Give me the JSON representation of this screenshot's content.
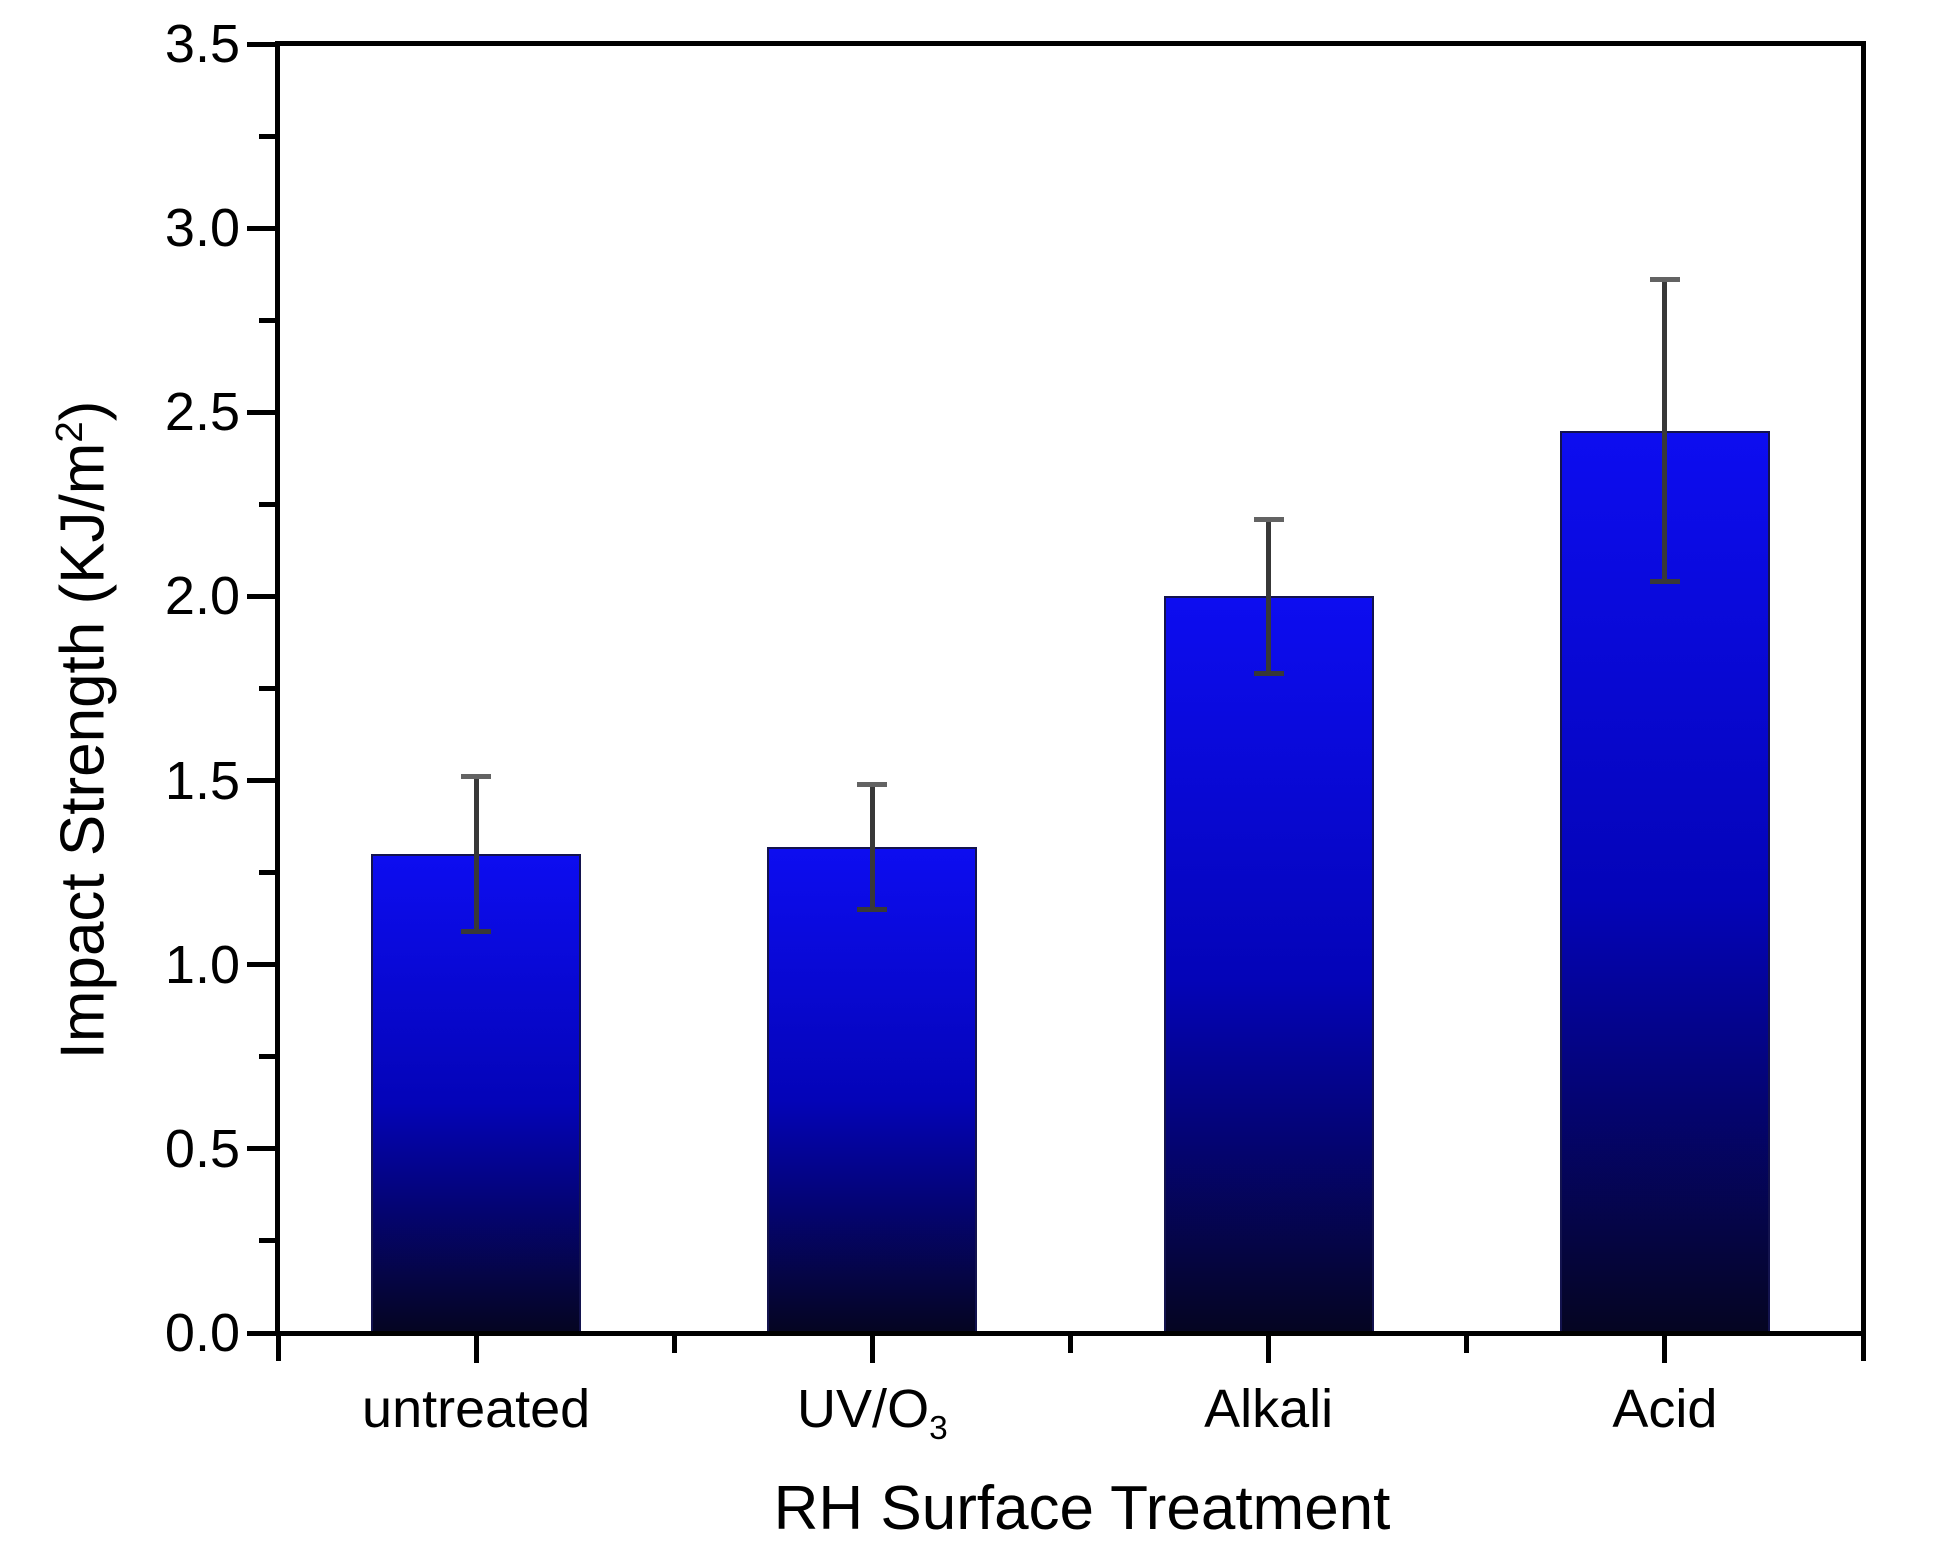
{
  "chart_data": {
    "type": "bar",
    "title": "",
    "xlabel": "RH Surface Treatment",
    "ylabel": {
      "prefix": "Impact Strength (KJ/m",
      "sup": "2",
      "suffix": ")"
    },
    "categories": [
      {
        "label": "untreated",
        "sub": ""
      },
      {
        "label": "UV/O",
        "sub": "3"
      },
      {
        "label": "Alkali",
        "sub": ""
      },
      {
        "label": "Acid",
        "sub": ""
      }
    ],
    "series": [
      {
        "name": "Impact Strength",
        "values": [
          1.3,
          1.32,
          2.0,
          2.45
        ],
        "errors": [
          0.21,
          0.17,
          0.21,
          0.41
        ]
      }
    ],
    "ylim": [
      0,
      3.5
    ],
    "ytick_step": 0.5,
    "ytick_labels": [
      "0.0",
      "0.5",
      "1.0",
      "1.5",
      "2.0",
      "2.5",
      "3.0",
      "3.5"
    ],
    "minor_ticks": true,
    "grid": false,
    "legend": "none",
    "colors": {
      "bar_top": "#0d0df0",
      "bar_mid": "#0404b8",
      "bar_bottom": "#050522",
      "bar_border": "#13134e",
      "error_line": "#383838",
      "error_cap": "#636363",
      "axis": "#000000",
      "background": "#ffffff"
    }
  }
}
